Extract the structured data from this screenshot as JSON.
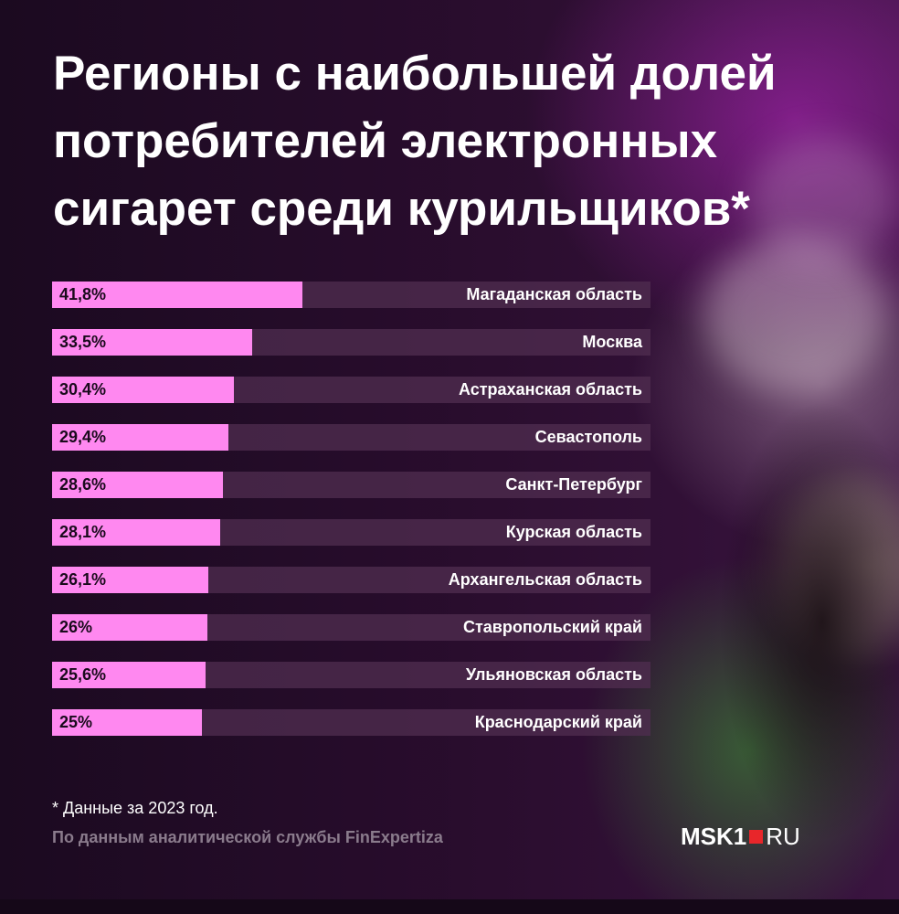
{
  "title": {
    "line1_prefix": "Регионы с наибольшей ",
    "line1_highlight": "долей",
    "line2": "потребителей электронных",
    "line3": "сигарет среди курильщиков*"
  },
  "chart_data": {
    "type": "bar",
    "orientation": "horizontal",
    "categories": [
      "Магаданская область",
      "Москва",
      "Астраханская область",
      "Севастополь",
      "Санкт-Петербург",
      "Курская область",
      "Архангельская область",
      "Ставропольский край",
      "Ульяновская область",
      "Краснодарский край"
    ],
    "values": [
      41.8,
      33.5,
      30.4,
      29.4,
      28.6,
      28.1,
      26.1,
      26,
      25.6,
      25
    ],
    "value_labels": [
      "41,8%",
      "33,5%",
      "30,4%",
      "29,4%",
      "28,6%",
      "28,1%",
      "26,1%",
      "26%",
      "25,6%",
      "25%"
    ],
    "xlim": [
      0,
      100
    ],
    "bar_color": "#ff88f0",
    "track_color": "#502d50"
  },
  "footnote": "* Данные за 2023 год.",
  "source": "По данным аналитической службы FinExpertiza",
  "logo": {
    "left": "MSK1",
    "right": "RU",
    "square_color": "#e8262a"
  }
}
